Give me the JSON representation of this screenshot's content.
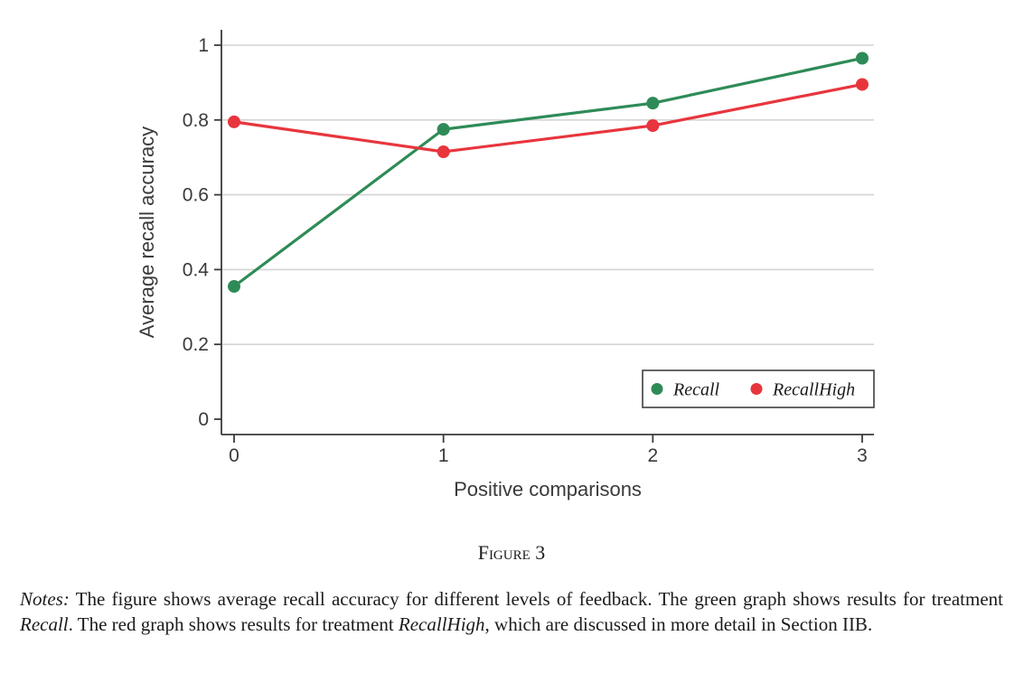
{
  "chart_data": {
    "type": "line",
    "title": "",
    "xlabel": "Positive comparisons",
    "ylabel": "Average recall accuracy",
    "x": [
      0,
      1,
      2,
      3
    ],
    "x_tick_labels": [
      "0",
      "1",
      "2",
      "3"
    ],
    "y_ticks": [
      0,
      0.2,
      0.4,
      0.6,
      0.8,
      1
    ],
    "y_tick_labels": [
      "0",
      "0.2",
      "0.4",
      "0.6",
      "0.8",
      "1"
    ],
    "ylim": [
      0,
      1
    ],
    "grid": "horizontal-only",
    "gridline_color": "#d4d4d4",
    "axis_color": "#3a3a3a",
    "legend_position": "inside-bottom-right-boxed",
    "series": [
      {
        "name": "Recall",
        "color": "#2e8b57",
        "values": [
          0.355,
          0.775,
          0.845,
          0.965
        ]
      },
      {
        "name": "RecallHigh",
        "color": "#e8353d",
        "values": [
          0.795,
          0.715,
          0.785,
          0.895
        ]
      }
    ]
  },
  "caption": {
    "label": "Figure 3"
  },
  "notes": {
    "segments": [
      {
        "text": "Notes:",
        "italic": true
      },
      {
        "text": " The figure shows average recall accuracy for different levels of feedback. The green graph shows results for treatment ",
        "italic": false
      },
      {
        "text": "Recall",
        "italic": true
      },
      {
        "text": ". The red graph shows results for treatment ",
        "italic": false
      },
      {
        "text": "RecallHigh",
        "italic": true
      },
      {
        "text": ", which are discussed in more detail in Section IIB.",
        "italic": false
      }
    ]
  }
}
